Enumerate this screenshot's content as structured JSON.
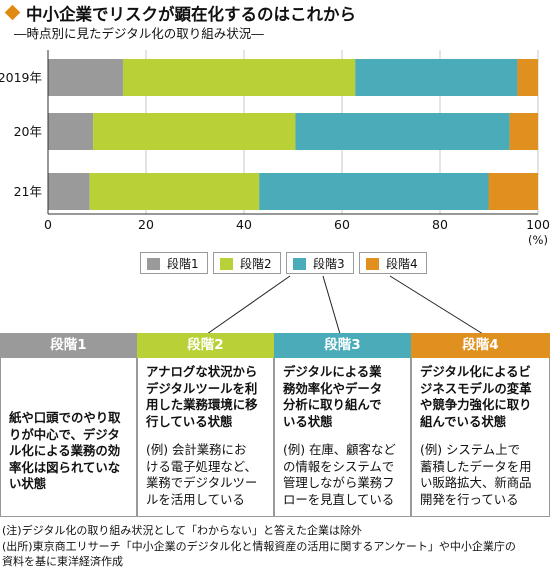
{
  "header": {
    "title": "中小企業でリスクが顕在化するのはこれから",
    "subtitle": "―時点別に見たデジタル化の取り組み状況―"
  },
  "colors": {
    "stage1": "#9a9a9a",
    "stage2": "#b9d136",
    "stage3": "#49acb8",
    "stage4": "#e0901f"
  },
  "chart_data": {
    "type": "bar",
    "orientation": "horizontal",
    "stacked": true,
    "categories": [
      "2019年",
      "20年",
      "21年"
    ],
    "series": [
      {
        "name": "段階1",
        "values": [
          15.3,
          9.2,
          8.5
        ]
      },
      {
        "name": "段階2",
        "values": [
          47.4,
          41.3,
          34.6
        ]
      },
      {
        "name": "段階3",
        "values": [
          33.1,
          43.7,
          46.8
        ]
      },
      {
        "name": "段階4",
        "values": [
          4.2,
          5.8,
          10.1
        ]
      }
    ],
    "xlim": [
      0,
      100
    ],
    "xticks": [
      "0",
      "20",
      "40",
      "60",
      "80",
      "100"
    ],
    "xunit": "(%)",
    "legend": "bottom"
  },
  "stages": [
    {
      "label": "段階1",
      "description": [
        "紙や口頭でのやり取",
        "りが中心で、デジタ",
        "ル化による業務の効",
        "率化は図られていな",
        "い状態"
      ],
      "example": []
    },
    {
      "label": "段階2",
      "description": [
        "アナログな状況から",
        "デジタルツールを利",
        "用した業務環境に移",
        "行している状態"
      ],
      "example": [
        "(例) 会計業務にお",
        "ける電子処理など、",
        "業務でデジタルツー",
        "ルを活用している"
      ]
    },
    {
      "label": "段階3",
      "description": [
        "デジタルによる業",
        "務効率化やデータ",
        "分析に取り組んで",
        "いる状態"
      ],
      "example": [
        "(例) 在庫、顧客など",
        "の情報をシステムで",
        "管理しながら業務フ",
        "ローを見直している"
      ]
    },
    {
      "label": "段階4",
      "description": [
        "デジタル化によるビ",
        "ジネスモデルの変革",
        "や競争力強化に取り",
        "組んでいる状態"
      ],
      "example": [
        "(例) システム上で",
        "蓄積したデータを用",
        "い販路拡大、新商品",
        "開発を行っている"
      ]
    }
  ],
  "notes": {
    "note": "(注)デジタル化の取り組み状況として「わからない」と答えた企業は除外",
    "source_line1": "(出所)東京商工リサーチ「中小企業のデジタル化と情報資産の活用に関するアンケート」や中小企業庁の",
    "source_line2": "資料を基に東洋経済作成"
  }
}
